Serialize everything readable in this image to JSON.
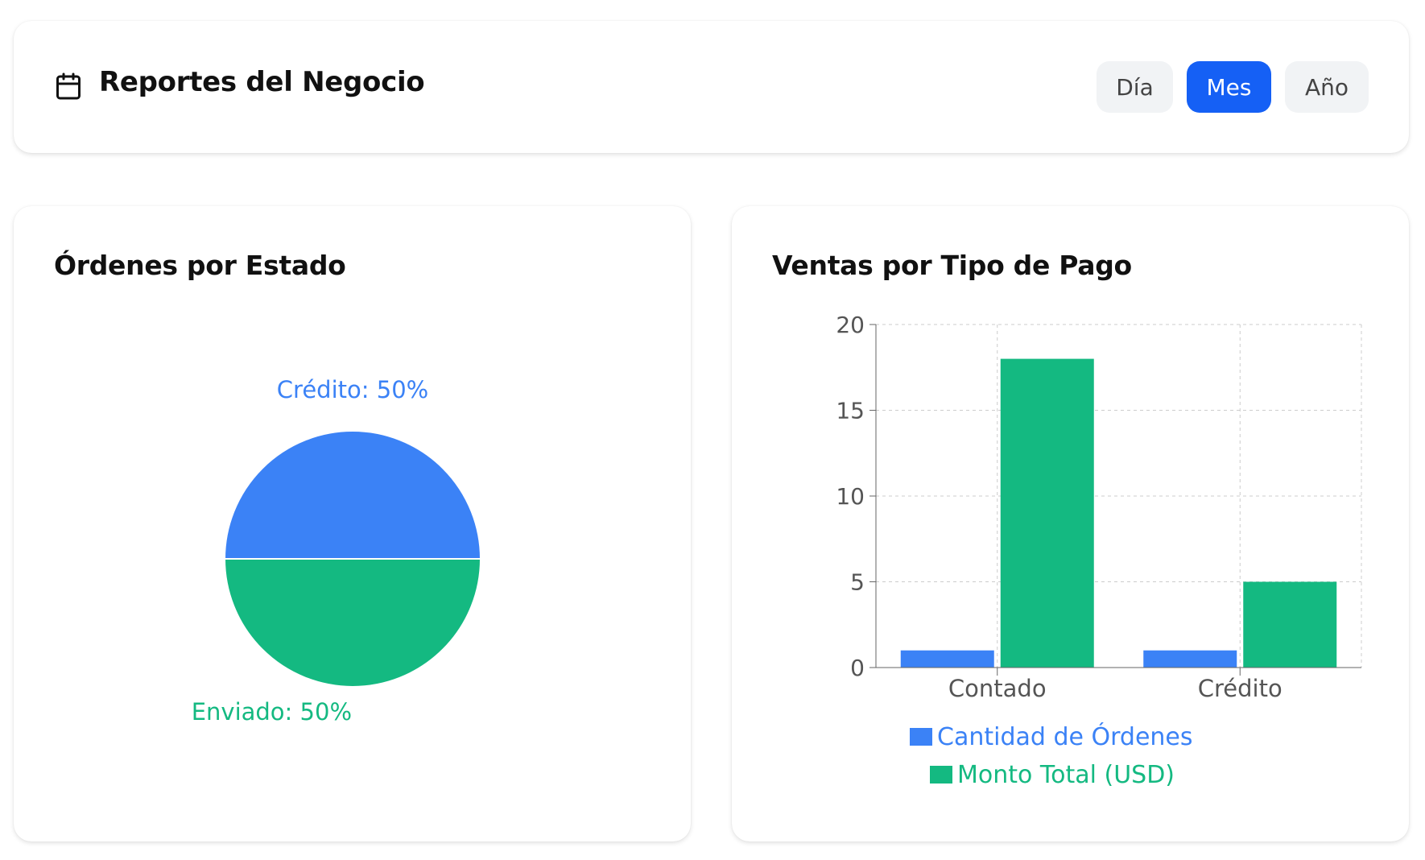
{
  "header": {
    "title": "Reportes del Negocio",
    "icon": "calendar-icon",
    "periods": [
      {
        "label": "Día",
        "active": false
      },
      {
        "label": "Mes",
        "active": true
      },
      {
        "label": "Año",
        "active": false
      }
    ]
  },
  "pie": {
    "title": "Órdenes por Estado",
    "chart_data": {
      "type": "pie",
      "slices": [
        {
          "label": "Crédito",
          "value": 50,
          "text": "Crédito: 50%",
          "color": "#3b82f6"
        },
        {
          "label": "Enviado",
          "value": 50,
          "text": "Enviado: 50%",
          "color": "#14b981"
        }
      ]
    }
  },
  "bar": {
    "title": "Ventas por Tipo de Pago",
    "chart_data": {
      "type": "bar",
      "categories": [
        "Contado",
        "Crédito"
      ],
      "ylim": [
        0,
        20
      ],
      "yticks": [
        "0",
        "5",
        "10",
        "15",
        "20"
      ],
      "grid": true,
      "legend": "bottom",
      "series": [
        {
          "name": "Cantidad de Órdenes",
          "values": [
            1,
            1
          ],
          "color": "#3b82f6"
        },
        {
          "name": "Monto Total (USD)",
          "values": [
            18,
            5
          ],
          "color": "#14b981"
        }
      ]
    }
  }
}
